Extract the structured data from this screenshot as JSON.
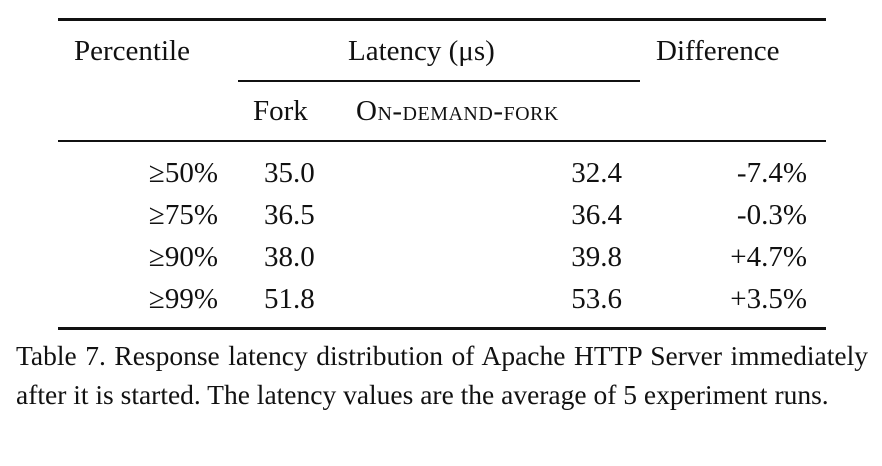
{
  "table": {
    "headers": {
      "percentile": "Percentile",
      "latency_group": "Latency (μs)",
      "difference": "Difference",
      "fork": "Fork",
      "on_demand_fork": "On-demand-fork"
    },
    "rows": [
      {
        "percentile": "≥50%",
        "fork": "35.0",
        "odf": "32.4",
        "diff": "-7.4%"
      },
      {
        "percentile": "≥75%",
        "fork": "36.5",
        "odf": "36.4",
        "diff": "-0.3%"
      },
      {
        "percentile": "≥90%",
        "fork": "38.0",
        "odf": "39.8",
        "diff": "+4.7%"
      },
      {
        "percentile": "≥99%",
        "fork": "51.8",
        "odf": "53.6",
        "diff": "+3.5%"
      }
    ]
  },
  "caption": "Table 7. Response latency distribution of Apache HTTP Server immediately after it is started. The latency values are the average of 5 experiment runs."
}
